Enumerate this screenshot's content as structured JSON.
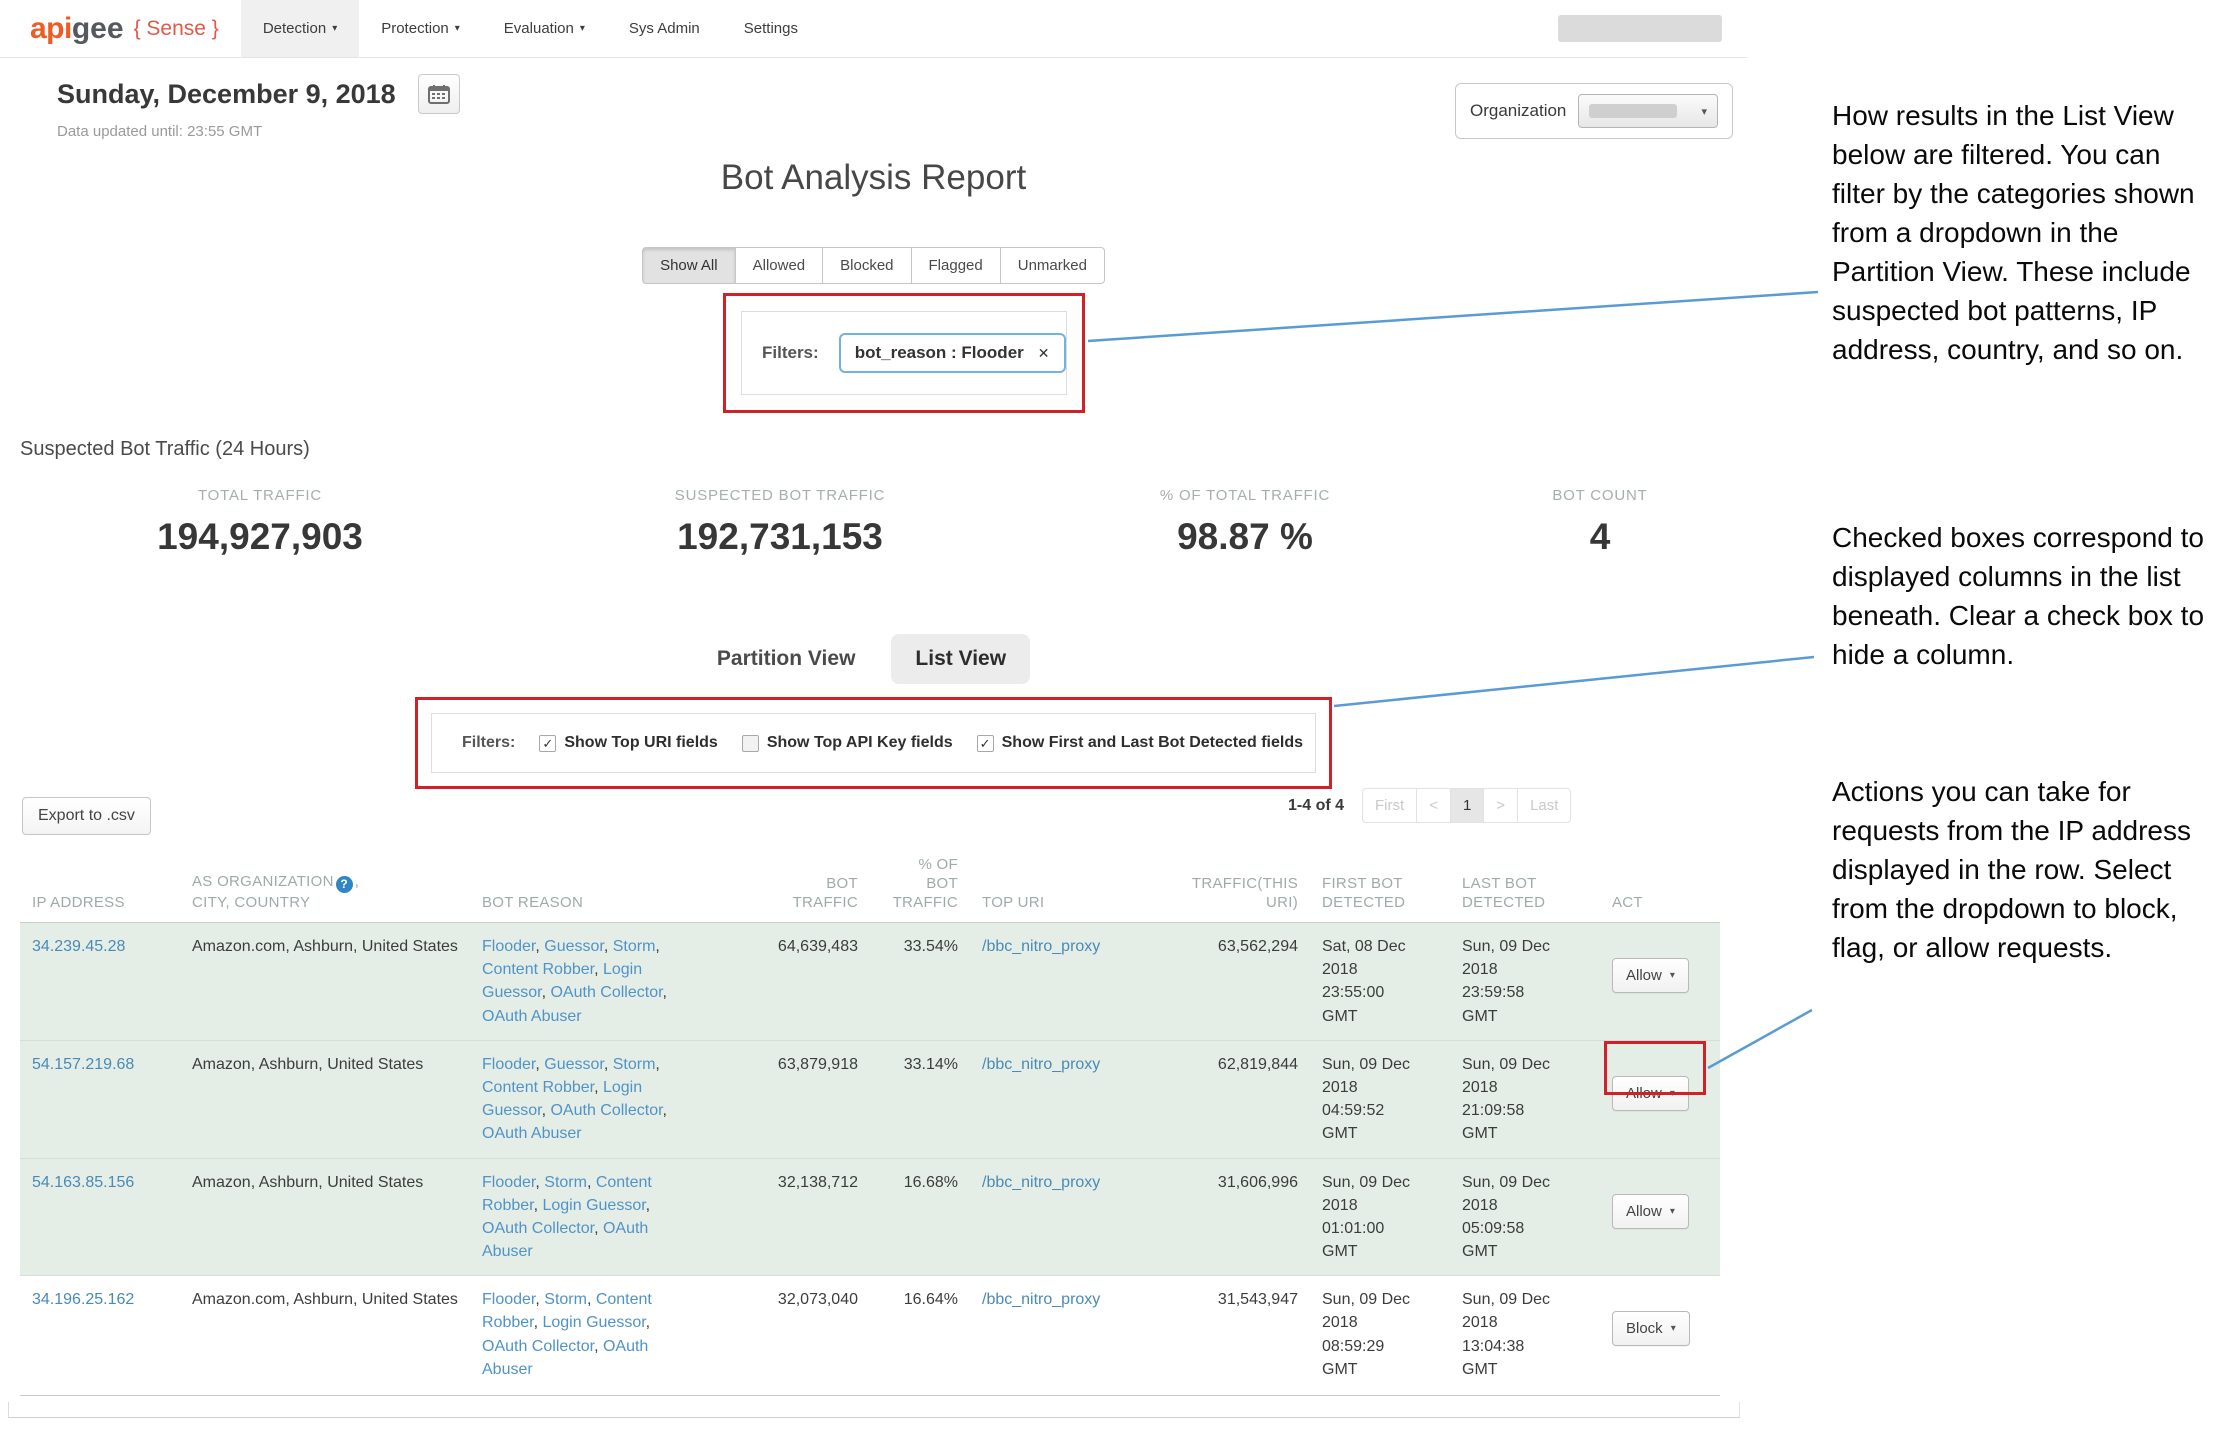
{
  "brand": {
    "api": "api",
    "gee": "gee",
    "sense": "{ Sense }"
  },
  "icons": {
    "caret_down": "▾",
    "help": "?",
    "chip_close": "✕"
  },
  "nav": {
    "items": [
      {
        "label": "Detection",
        "has_caret": true,
        "active": true
      },
      {
        "label": "Protection",
        "has_caret": true,
        "active": false
      },
      {
        "label": "Evaluation",
        "has_caret": true,
        "active": false
      },
      {
        "label": "Sys Admin",
        "has_caret": false,
        "active": false
      },
      {
        "label": "Settings",
        "has_caret": false,
        "active": false
      }
    ]
  },
  "header": {
    "date": "Sunday, December 9, 2018",
    "updated_text": "Data updated until: 23:55 GMT",
    "organization_label": "Organization"
  },
  "report": {
    "title": "Bot Analysis Report",
    "tabs": [
      {
        "label": "Show All",
        "active": true
      },
      {
        "label": "Allowed",
        "active": false
      },
      {
        "label": "Blocked",
        "active": false
      },
      {
        "label": "Flagged",
        "active": false
      },
      {
        "label": "Unmarked",
        "active": false
      }
    ],
    "filters_label": "Filters:",
    "filter_chip": {
      "text": "bot_reason : Flooder"
    }
  },
  "stats": {
    "section_title": "Suspected Bot Traffic (24 Hours)",
    "items": [
      {
        "label": "TOTAL TRAFFIC",
        "value": "194,927,903"
      },
      {
        "label": "SUSPECTED BOT TRAFFIC",
        "value": "192,731,153"
      },
      {
        "label": "% OF TOTAL TRAFFIC",
        "value": "98.87 %"
      },
      {
        "label": "BOT COUNT",
        "value": "4"
      }
    ]
  },
  "views": {
    "partition": "Partition View",
    "list": "List View",
    "active": "List View"
  },
  "column_filters": {
    "label": "Filters:",
    "options": [
      {
        "label": "Show Top URI fields",
        "checked": true
      },
      {
        "label": "Show Top API Key fields",
        "checked": false
      },
      {
        "label": "Show First and Last Bot Detected fields",
        "checked": true
      }
    ]
  },
  "toolbar": {
    "export_label": "Export to .csv"
  },
  "pagination": {
    "range_text": "1-4 of 4",
    "first_label": "First",
    "prev_label": "<",
    "page": "1",
    "next_label": ">",
    "last_label": "Last"
  },
  "table": {
    "columns": {
      "ip": [
        "IP ADDRESS"
      ],
      "org_line1": "AS ORGANIZATION",
      "org_comma": ",",
      "org_line2": "CITY, COUNTRY",
      "reason": [
        "BOT REASON"
      ],
      "bot_traffic": [
        "BOT",
        "TRAFFIC"
      ],
      "pct": [
        "% OF",
        "BOT",
        "TRAFFIC"
      ],
      "top_uri": [
        "TOP URI"
      ],
      "uri_traffic": [
        "TRAFFIC(THIS",
        "URI)"
      ],
      "first": [
        "FIRST BOT",
        "DETECTED"
      ],
      "last": [
        "LAST BOT",
        "DETECTED"
      ],
      "act": [
        "ACT"
      ]
    },
    "rows": [
      {
        "ip": "34.239.45.28",
        "org": "Amazon.com, Ashburn, United States",
        "reasons": [
          "Flooder",
          "Guessor",
          "Storm",
          "Content Robber",
          "Login Guessor",
          "OAuth Collector",
          "OAuth Abuser"
        ],
        "bot_traffic": "64,639,483",
        "pct": "33.54%",
        "top_uri": "/bbc_nitro_proxy",
        "uri_traffic": "63,562,294",
        "first_detected": [
          "Sat, 08 Dec",
          "2018",
          "23:55:00",
          "GMT"
        ],
        "last_detected": [
          "Sun, 09 Dec",
          "2018",
          "23:59:58",
          "GMT"
        ],
        "action": "Allow"
      },
      {
        "ip": "54.157.219.68",
        "org": "Amazon, Ashburn, United States",
        "reasons": [
          "Flooder",
          "Guessor",
          "Storm",
          "Content Robber",
          "Login Guessor",
          "OAuth Collector",
          "OAuth Abuser"
        ],
        "bot_traffic": "63,879,918",
        "pct": "33.14%",
        "top_uri": "/bbc_nitro_proxy",
        "uri_traffic": "62,819,844",
        "first_detected": [
          "Sun, 09 Dec",
          "2018",
          "04:59:52",
          "GMT"
        ],
        "last_detected": [
          "Sun, 09 Dec",
          "2018",
          "21:09:58",
          "GMT"
        ],
        "action": "Allow"
      },
      {
        "ip": "54.163.85.156",
        "org": "Amazon, Ashburn, United States",
        "reasons": [
          "Flooder",
          "Storm",
          "Content Robber",
          "Login Guessor",
          "OAuth Collector",
          "OAuth Abuser"
        ],
        "bot_traffic": "32,138,712",
        "pct": "16.68%",
        "top_uri": "/bbc_nitro_proxy",
        "uri_traffic": "31,606,996",
        "first_detected": [
          "Sun, 09 Dec",
          "2018",
          "01:01:00",
          "GMT"
        ],
        "last_detected": [
          "Sun, 09 Dec",
          "2018",
          "05:09:58",
          "GMT"
        ],
        "action": "Allow"
      },
      {
        "ip": "34.196.25.162",
        "org": "Amazon.com, Ashburn, United States",
        "reasons": [
          "Flooder",
          "Storm",
          "Content Robber",
          "Login Guessor",
          "OAuth Collector",
          "OAuth Abuser"
        ],
        "bot_traffic": "32,073,040",
        "pct": "16.64%",
        "top_uri": "/bbc_nitro_proxy",
        "uri_traffic": "31,543,947",
        "first_detected": [
          "Sun, 09 Dec",
          "2018",
          "08:59:29",
          "GMT"
        ],
        "last_detected": [
          "Sun, 09 Dec",
          "2018",
          "13:04:38",
          "GMT"
        ],
        "action": "Block"
      }
    ]
  },
  "annotations": [
    {
      "text": "How results in the List View below are filtered. You can filter by the categories shown from a dropdown in the Partition View. These include suspected bot patterns, IP address, country, and so on."
    },
    {
      "text": "Checked boxes correspond to displayed columns in the list beneath. Clear a check box to hide a column."
    },
    {
      "text": "Actions you can take for requests from the IP address displayed in the row. Select from the dropdown to block, flag, or allow requests."
    }
  ],
  "colors": {
    "annotation_red": "#cf2127",
    "callout_blue": "#5b9bd5",
    "row_highlight_green": "#e5eee6",
    "link_blue": "#4a8ab6",
    "brand_orange": "#f05b24",
    "brand_sense_red": "#e25847",
    "help_icon_blue": "#2f86c4"
  }
}
